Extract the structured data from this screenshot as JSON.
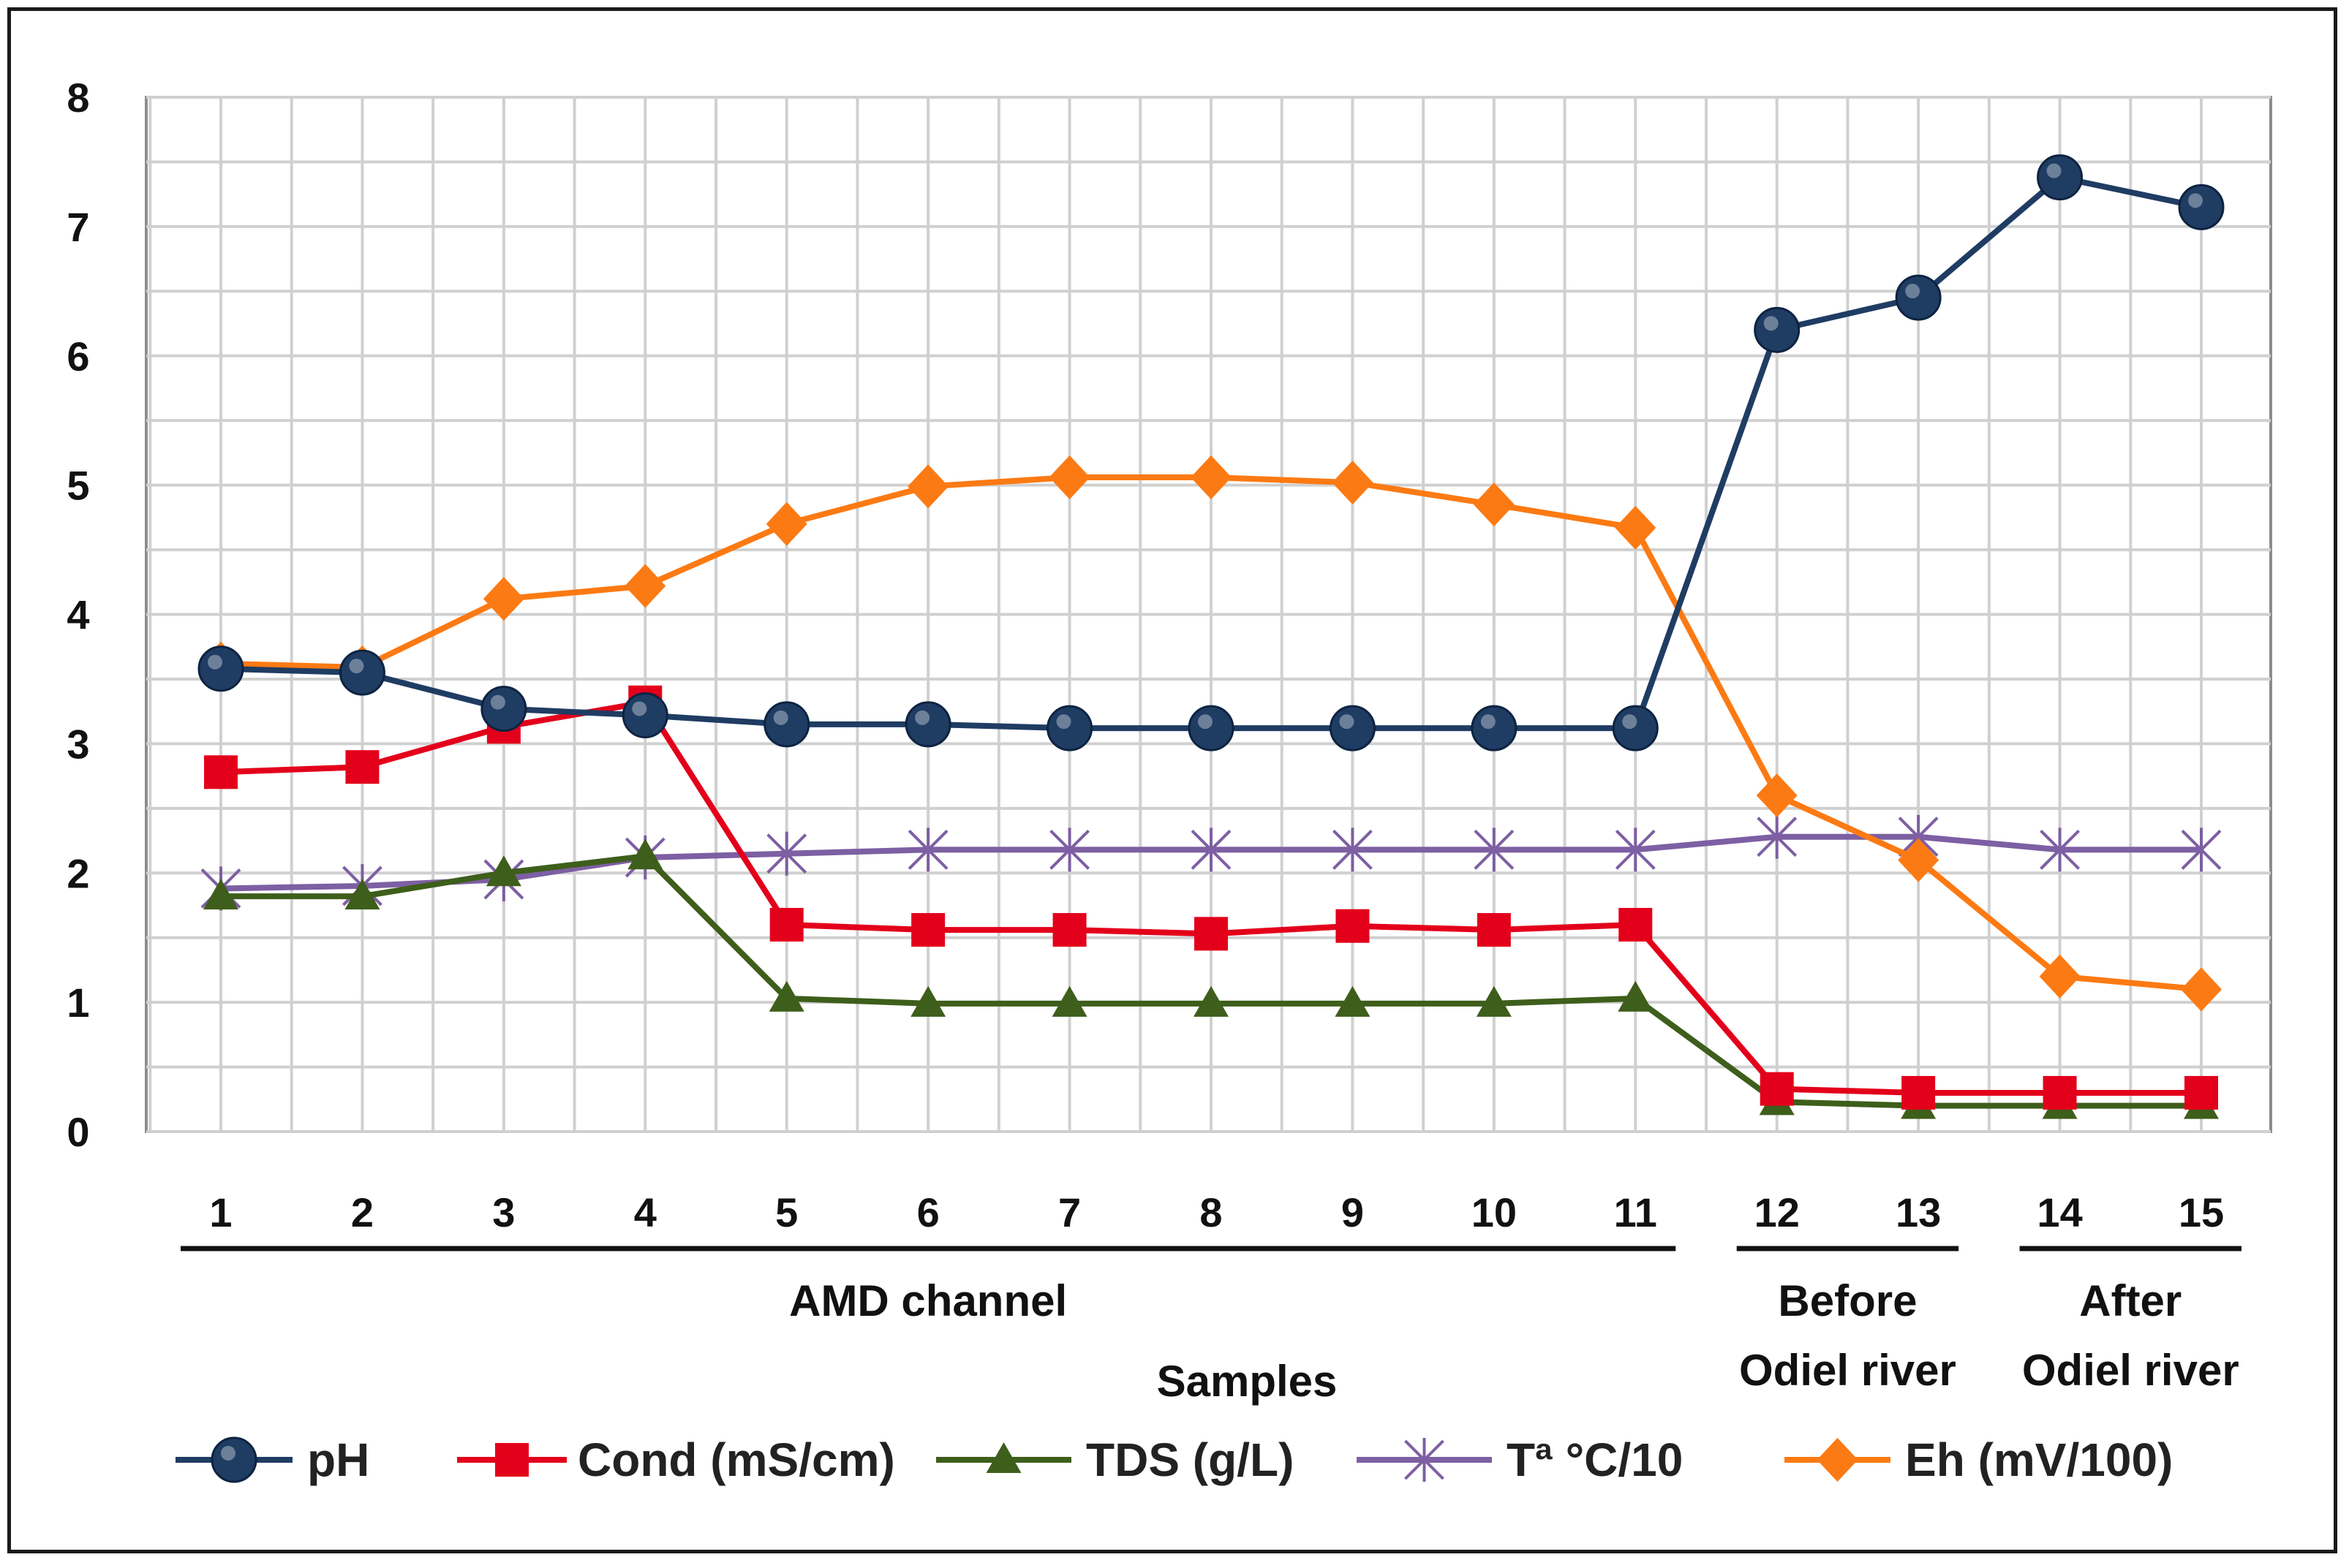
{
  "chart_data": {
    "type": "line",
    "title": "",
    "xlabel": "Samples",
    "ylabel": "",
    "ylim": [
      0,
      8
    ],
    "yticks": [
      "0",
      "1",
      "2",
      "3",
      "4",
      "5",
      "6",
      "7",
      "8"
    ],
    "grid": true,
    "categories": [
      "1",
      "2",
      "3",
      "4",
      "5",
      "6",
      "7",
      "8",
      "9",
      "10",
      "11",
      "12",
      "13",
      "14",
      "15"
    ],
    "groups": [
      {
        "label_lines": [
          "AMD channel"
        ],
        "from": "1",
        "to": "11"
      },
      {
        "label_lines": [
          "Before",
          "Odiel river"
        ],
        "from": "12",
        "to": "13"
      },
      {
        "label_lines": [
          "After",
          "Odiel river"
        ],
        "from": "14",
        "to": "15"
      }
    ],
    "legend_position": "bottom",
    "series": [
      {
        "name": "pH",
        "color": "#1f3c63",
        "marker": "circle",
        "values": [
          3.58,
          3.55,
          3.27,
          3.22,
          3.15,
          3.15,
          3.12,
          3.12,
          3.12,
          3.12,
          3.12,
          6.2,
          6.45,
          7.38,
          7.15
        ]
      },
      {
        "name": "Cond (mS/cm)",
        "color": "#e3001b",
        "marker": "square",
        "values": [
          2.78,
          2.82,
          3.13,
          3.32,
          1.6,
          1.56,
          1.56,
          1.53,
          1.59,
          1.56,
          1.6,
          0.33,
          0.3,
          0.3,
          0.3
        ]
      },
      {
        "name": "TDS (g/L)",
        "color": "#3e5e1b",
        "marker": "triangle",
        "values": [
          1.82,
          1.82,
          2.0,
          2.13,
          1.03,
          0.99,
          0.99,
          0.99,
          0.99,
          0.99,
          1.03,
          0.23,
          0.2,
          0.2,
          0.2
        ]
      },
      {
        "name": "Tª °C/10",
        "color": "#7d5fa3",
        "marker": "asterisk",
        "values": [
          1.88,
          1.9,
          1.95,
          2.12,
          2.15,
          2.18,
          2.18,
          2.18,
          2.18,
          2.18,
          2.18,
          2.28,
          2.28,
          2.18,
          2.18
        ]
      },
      {
        "name": "Eh (mV/100)",
        "color": "#fc7a13",
        "marker": "diamond",
        "values": [
          3.62,
          3.59,
          4.12,
          4.22,
          4.7,
          4.99,
          5.06,
          5.06,
          5.02,
          4.85,
          4.67,
          2.6,
          2.1,
          1.2,
          1.1
        ]
      }
    ]
  }
}
